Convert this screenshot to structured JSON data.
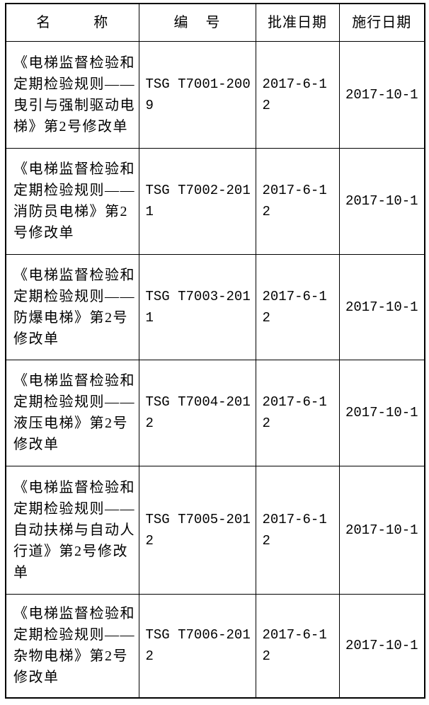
{
  "page": {
    "background_color": "#ffffff",
    "text_color": "#000000",
    "border_color": "#000000"
  },
  "table": {
    "headers": {
      "name": "名          称",
      "code": "编    号",
      "approval_date": "批准日期",
      "effective_date": "施行日期"
    },
    "rows": [
      {
        "name": [
          "《电梯监督检验和",
          "定期检验规则——",
          "曳引与强制驱动电",
          "梯》第2号修改单"
        ],
        "code": [
          "TSG T7001-200",
          "9"
        ],
        "approval_date": [
          "2017-6-1",
          "2"
        ],
        "effective_date": "2017-10-1"
      },
      {
        "name": [
          "《电梯监督检验和",
          "定期检验规则——",
          "消防员电梯》第2",
          "号修改单"
        ],
        "code": [
          "TSG T7002-201",
          "1"
        ],
        "approval_date": [
          "2017-6-1",
          "2"
        ],
        "effective_date": "2017-10-1"
      },
      {
        "name": [
          "《电梯监督检验和",
          "定期检验规则——",
          "防爆电梯》第2号",
          "修改单"
        ],
        "code": [
          "TSG T7003-201",
          "1"
        ],
        "approval_date": [
          "2017-6-1",
          "2"
        ],
        "effective_date": "2017-10-1"
      },
      {
        "name": [
          "《电梯监督检验和",
          "定期检验规则——",
          "液压电梯》第2号",
          "修改单"
        ],
        "code": [
          "TSG T7004-201",
          "2"
        ],
        "approval_date": [
          "2017-6-1",
          "2"
        ],
        "effective_date": "2017-10-1"
      },
      {
        "name": [
          "《电梯监督检验和",
          "定期检验规则——",
          "自动扶梯与自动人",
          "行道》第2号修改",
          "单"
        ],
        "code": [
          "TSG T7005-201",
          "2"
        ],
        "approval_date": [
          "2017-6-1",
          "2"
        ],
        "effective_date": "2017-10-1"
      },
      {
        "name": [
          "《电梯监督检验和",
          "定期检验规则——",
          "杂物电梯》第2号",
          "修改单"
        ],
        "code": [
          "TSG T7006-201",
          "2"
        ],
        "approval_date": [
          "2017-6-1",
          "2"
        ],
        "effective_date": "2017-10-1"
      }
    ]
  }
}
